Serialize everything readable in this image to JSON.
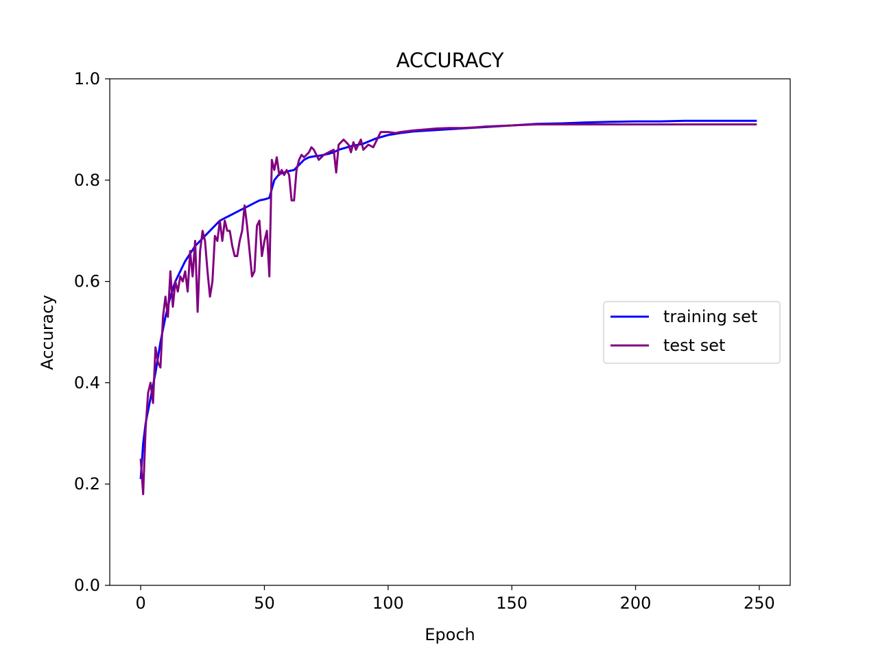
{
  "chart_data": {
    "type": "line",
    "title": "ACCURACY",
    "xlabel": "Epoch",
    "ylabel": "Accuracy",
    "xlim": [
      -12.5,
      262.5
    ],
    "ylim": [
      0.0,
      1.0
    ],
    "xticks": [
      0,
      50,
      100,
      150,
      200,
      250
    ],
    "yticks": [
      0.0,
      0.2,
      0.4,
      0.6,
      0.8,
      1.0
    ],
    "xtick_labels": [
      "0",
      "50",
      "100",
      "150",
      "200",
      "250"
    ],
    "ytick_labels": [
      "0.0",
      "0.2",
      "0.4",
      "0.6",
      "0.8",
      "1.0"
    ],
    "grid": false,
    "legend": {
      "position": "center-right"
    },
    "series": [
      {
        "name": "training set",
        "color": "#0000ff",
        "x": [
          0,
          1,
          2,
          4,
          6,
          8,
          10,
          12,
          14,
          16,
          18,
          20,
          22,
          24,
          26,
          28,
          30,
          32,
          34,
          36,
          38,
          40,
          42,
          44,
          46,
          48,
          50,
          52,
          54,
          56,
          58,
          60,
          62,
          64,
          66,
          68,
          70,
          72,
          74,
          76,
          78,
          80,
          85,
          90,
          95,
          100,
          105,
          110,
          120,
          130,
          140,
          150,
          160,
          170,
          180,
          190,
          200,
          210,
          220,
          230,
          240,
          249
        ],
        "y": [
          0.21,
          0.28,
          0.32,
          0.37,
          0.42,
          0.48,
          0.53,
          0.57,
          0.6,
          0.62,
          0.64,
          0.655,
          0.67,
          0.68,
          0.69,
          0.7,
          0.71,
          0.72,
          0.725,
          0.73,
          0.735,
          0.74,
          0.745,
          0.75,
          0.755,
          0.76,
          0.762,
          0.765,
          0.8,
          0.812,
          0.815,
          0.818,
          0.82,
          0.83,
          0.84,
          0.845,
          0.847,
          0.848,
          0.85,
          0.852,
          0.855,
          0.86,
          0.867,
          0.872,
          0.882,
          0.889,
          0.893,
          0.896,
          0.899,
          0.902,
          0.905,
          0.908,
          0.911,
          0.912,
          0.914,
          0.915,
          0.916,
          0.916,
          0.917,
          0.917,
          0.917,
          0.917
        ]
      },
      {
        "name": "test set",
        "color": "#800080",
        "x": [
          0,
          1,
          2,
          3,
          4,
          5,
          6,
          7,
          8,
          9,
          10,
          11,
          12,
          13,
          14,
          15,
          16,
          17,
          18,
          19,
          20,
          21,
          22,
          23,
          24,
          25,
          26,
          27,
          28,
          29,
          30,
          31,
          32,
          33,
          34,
          35,
          36,
          37,
          38,
          39,
          40,
          41,
          42,
          43,
          44,
          45,
          46,
          47,
          48,
          49,
          50,
          51,
          52,
          53,
          54,
          55,
          56,
          57,
          58,
          59,
          60,
          61,
          62,
          63,
          64,
          65,
          66,
          67,
          68,
          69,
          70,
          72,
          74,
          76,
          78,
          79,
          80,
          82,
          84,
          85,
          86,
          87,
          88,
          89,
          90,
          92,
          94,
          95,
          97,
          100,
          103,
          105,
          110,
          115,
          120,
          125,
          130,
          135,
          140,
          145,
          150,
          155,
          160,
          170,
          180,
          190,
          200,
          210,
          220,
          230,
          240,
          249
        ],
        "y": [
          0.25,
          0.18,
          0.31,
          0.38,
          0.4,
          0.36,
          0.47,
          0.44,
          0.43,
          0.53,
          0.57,
          0.53,
          0.62,
          0.55,
          0.6,
          0.58,
          0.61,
          0.6,
          0.62,
          0.58,
          0.66,
          0.61,
          0.68,
          0.54,
          0.66,
          0.7,
          0.68,
          0.62,
          0.57,
          0.6,
          0.69,
          0.68,
          0.72,
          0.68,
          0.72,
          0.7,
          0.7,
          0.67,
          0.65,
          0.65,
          0.68,
          0.7,
          0.75,
          0.71,
          0.66,
          0.61,
          0.62,
          0.71,
          0.72,
          0.65,
          0.68,
          0.7,
          0.61,
          0.84,
          0.82,
          0.845,
          0.81,
          0.82,
          0.81,
          0.82,
          0.81,
          0.76,
          0.76,
          0.82,
          0.84,
          0.85,
          0.845,
          0.85,
          0.855,
          0.865,
          0.86,
          0.84,
          0.85,
          0.855,
          0.86,
          0.815,
          0.87,
          0.88,
          0.87,
          0.855,
          0.875,
          0.86,
          0.87,
          0.88,
          0.86,
          0.87,
          0.865,
          0.875,
          0.895,
          0.895,
          0.893,
          0.895,
          0.898,
          0.9,
          0.902,
          0.903,
          0.903,
          0.904,
          0.906,
          0.907,
          0.908,
          0.909,
          0.91,
          0.91,
          0.91,
          0.91,
          0.91,
          0.91,
          0.91,
          0.91,
          0.91,
          0.91
        ]
      }
    ]
  }
}
